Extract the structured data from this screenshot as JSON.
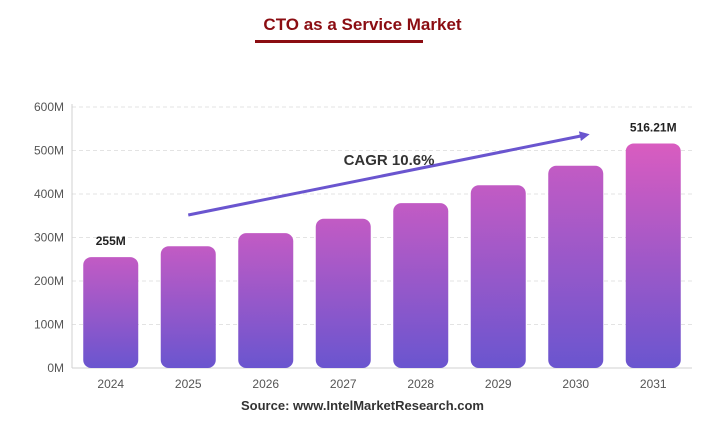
{
  "page": {
    "title": "CTO as a Service Market",
    "source": "Source: www.IntelMarketResearch.com"
  },
  "colors": {
    "title": "#8b0d12",
    "bar_top": "#c25bc4",
    "bar_bottom": "#6a55cf",
    "bar_top_highlight": "#d95cc0",
    "arrow": "#6a55cf"
  },
  "chart_data": {
    "type": "bar",
    "title": "CTO as a Service Market",
    "categories": [
      "2024",
      "2025",
      "2026",
      "2027",
      "2028",
      "2029",
      "2030",
      "2031"
    ],
    "values": [
      255,
      280,
      310,
      343,
      379,
      420,
      465,
      516.21
    ],
    "unit": "M",
    "ylim": [
      0,
      600
    ],
    "yticks": [
      "0M",
      "100M",
      "200M",
      "300M",
      "400M",
      "500M",
      "600M"
    ],
    "data_labels": [
      {
        "category": "2024",
        "text": "255M"
      },
      {
        "category": "2031",
        "text": "516.21M"
      }
    ],
    "annotation": "CAGR 10.6%",
    "grid": true,
    "legend": "none"
  }
}
